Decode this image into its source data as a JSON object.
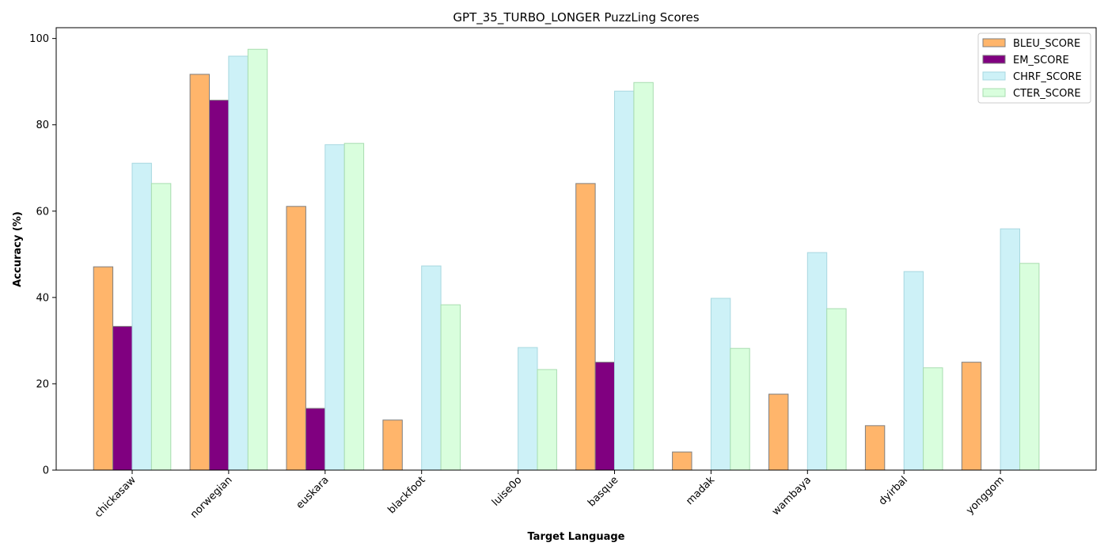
{
  "chart_data": {
    "type": "bar",
    "title": "GPT_35_TURBO_LONGER PuzzLing Scores",
    "xlabel": "Target Language",
    "ylabel": "Accuracy (%)",
    "ylim": [
      0,
      102.5
    ],
    "yticks": [
      0,
      20,
      40,
      60,
      80,
      100
    ],
    "grid": false,
    "legend_position": "top-right",
    "categories": [
      "chickasaw",
      "norwegian",
      "euskara",
      "blackfoot",
      "luise0o",
      "basque",
      "madak",
      "wambaya",
      "dyirbal",
      "yonggom"
    ],
    "series": [
      {
        "name": "BLEU_SCORE",
        "color": "#ffb56b",
        "edge": "#7f7f7f",
        "values": [
          47.1,
          91.7,
          61.1,
          11.6,
          0.0,
          66.4,
          4.2,
          17.6,
          10.3,
          25.0
        ]
      },
      {
        "name": "EM_SCORE",
        "color": "#800080",
        "edge": "#7f7f7f",
        "values": [
          33.3,
          85.7,
          14.3,
          0.0,
          0.0,
          25.0,
          0.0,
          0.0,
          0.0,
          0.0
        ]
      },
      {
        "name": "CHRF_SCORE",
        "color": "#cdf1f7",
        "edge": "#a8d8e0",
        "values": [
          71.1,
          95.9,
          75.4,
          47.3,
          28.4,
          87.8,
          39.8,
          50.4,
          46.0,
          55.9
        ]
      },
      {
        "name": "CTER_SCORE",
        "color": "#d9fedd",
        "edge": "#a8ddb0",
        "values": [
          66.4,
          97.5,
          75.7,
          38.3,
          23.3,
          89.8,
          28.2,
          37.4,
          23.7,
          47.9
        ]
      }
    ]
  }
}
